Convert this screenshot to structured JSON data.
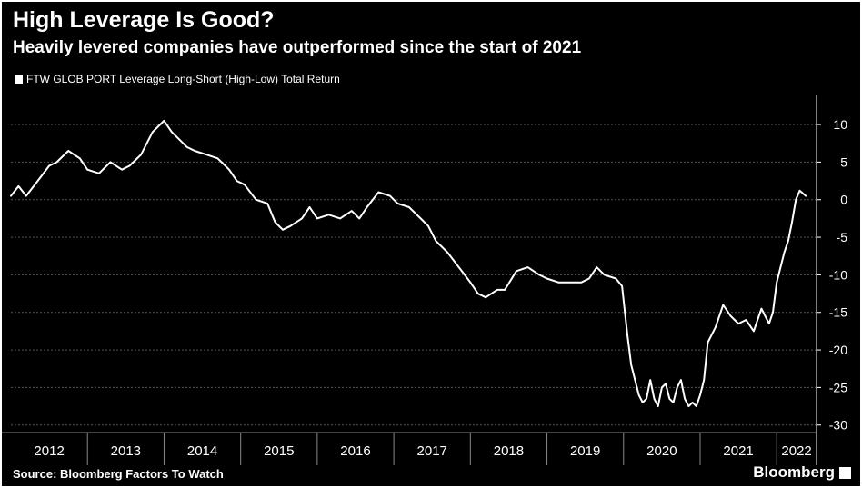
{
  "title": "High Leverage Is Good?",
  "subtitle": "Heavily levered companies have outperformed since the start of 2021",
  "source": "Source: Bloomberg Factors To Watch",
  "brand": "Bloomberg",
  "colors": {
    "background": "#000000",
    "line": "#ffffff",
    "grid": "#555555"
  },
  "chart_data": {
    "type": "line",
    "title": "High Leverage Is Good?",
    "subtitle": "Heavily levered companies have outperformed since the start of 2021",
    "legend_position": "top-left",
    "y_axis_side": "right",
    "grid": true,
    "xlabel": "",
    "ylabel": "",
    "ylim": [
      -31,
      14
    ],
    "xlim": [
      2012.0,
      2022.52
    ],
    "yticks": [
      10,
      5,
      0,
      -5,
      -10,
      -15,
      -20,
      -25,
      -30
    ],
    "x_tick_labels": [
      "2012",
      "2013",
      "2014",
      "2015",
      "2016",
      "2017",
      "2018",
      "2019",
      "2020",
      "2021",
      "2022"
    ],
    "series": [
      {
        "name": "FTW GLOB PORT Leverage Long-Short (High-Low) Total Return",
        "x": [
          2012.0,
          2012.1,
          2012.2,
          2012.35,
          2012.5,
          2012.6,
          2012.75,
          2012.9,
          2013.0,
          2013.15,
          2013.3,
          2013.45,
          2013.55,
          2013.7,
          2013.85,
          2014.0,
          2014.1,
          2014.2,
          2014.3,
          2014.4,
          2014.55,
          2014.7,
          2014.85,
          2014.95,
          2015.05,
          2015.2,
          2015.35,
          2015.45,
          2015.55,
          2015.65,
          2015.8,
          2015.9,
          2016.0,
          2016.15,
          2016.3,
          2016.45,
          2016.55,
          2016.65,
          2016.8,
          2016.95,
          2017.05,
          2017.2,
          2017.35,
          2017.45,
          2017.55,
          2017.7,
          2017.85,
          2018.0,
          2018.1,
          2018.2,
          2018.35,
          2018.45,
          2018.6,
          2018.75,
          2018.9,
          2019.0,
          2019.15,
          2019.3,
          2019.45,
          2019.55,
          2019.65,
          2019.75,
          2019.9,
          2019.98,
          2020.05,
          2020.1,
          2020.15,
          2020.2,
          2020.25,
          2020.3,
          2020.35,
          2020.4,
          2020.45,
          2020.5,
          2020.55,
          2020.6,
          2020.65,
          2020.7,
          2020.75,
          2020.8,
          2020.85,
          2020.9,
          2020.95,
          2021.0,
          2021.05,
          2021.1,
          2021.2,
          2021.3,
          2021.4,
          2021.5,
          2021.6,
          2021.7,
          2021.8,
          2021.85,
          2021.9,
          2021.95,
          2022.0,
          2022.05,
          2022.1,
          2022.15,
          2022.2,
          2022.25,
          2022.3,
          2022.38
        ],
        "values": [
          0.5,
          1.8,
          0.5,
          2.5,
          4.5,
          5.0,
          6.5,
          5.5,
          4.0,
          3.5,
          5.0,
          4.0,
          4.5,
          6.0,
          9.0,
          10.5,
          9.0,
          8.0,
          7.0,
          6.5,
          6.0,
          5.5,
          4.0,
          2.5,
          2.0,
          0.0,
          -0.5,
          -3.0,
          -4.0,
          -3.5,
          -2.5,
          -1.0,
          -2.5,
          -2.0,
          -2.5,
          -1.5,
          -2.5,
          -1.0,
          1.0,
          0.5,
          -0.5,
          -1.0,
          -2.5,
          -3.5,
          -5.5,
          -7.0,
          -9.0,
          -11.0,
          -12.5,
          -13.0,
          -12.0,
          -12.0,
          -9.5,
          -9.0,
          -10.0,
          -10.5,
          -11.0,
          -11.0,
          -11.0,
          -10.5,
          -9.0,
          -10.0,
          -10.5,
          -11.5,
          -18.0,
          -22.0,
          -24.0,
          -26.0,
          -27.0,
          -26.5,
          -24.0,
          -26.5,
          -27.5,
          -25.0,
          -24.5,
          -26.5,
          -27.0,
          -25.0,
          -24.0,
          -26.5,
          -27.5,
          -27.0,
          -27.5,
          -26.0,
          -24.0,
          -19.0,
          -17.0,
          -14.0,
          -15.5,
          -16.5,
          -16.0,
          -17.5,
          -14.5,
          -15.5,
          -16.5,
          -15.0,
          -11.0,
          -9.0,
          -7.0,
          -5.5,
          -3.0,
          0.0,
          1.2,
          0.5
        ]
      }
    ]
  }
}
